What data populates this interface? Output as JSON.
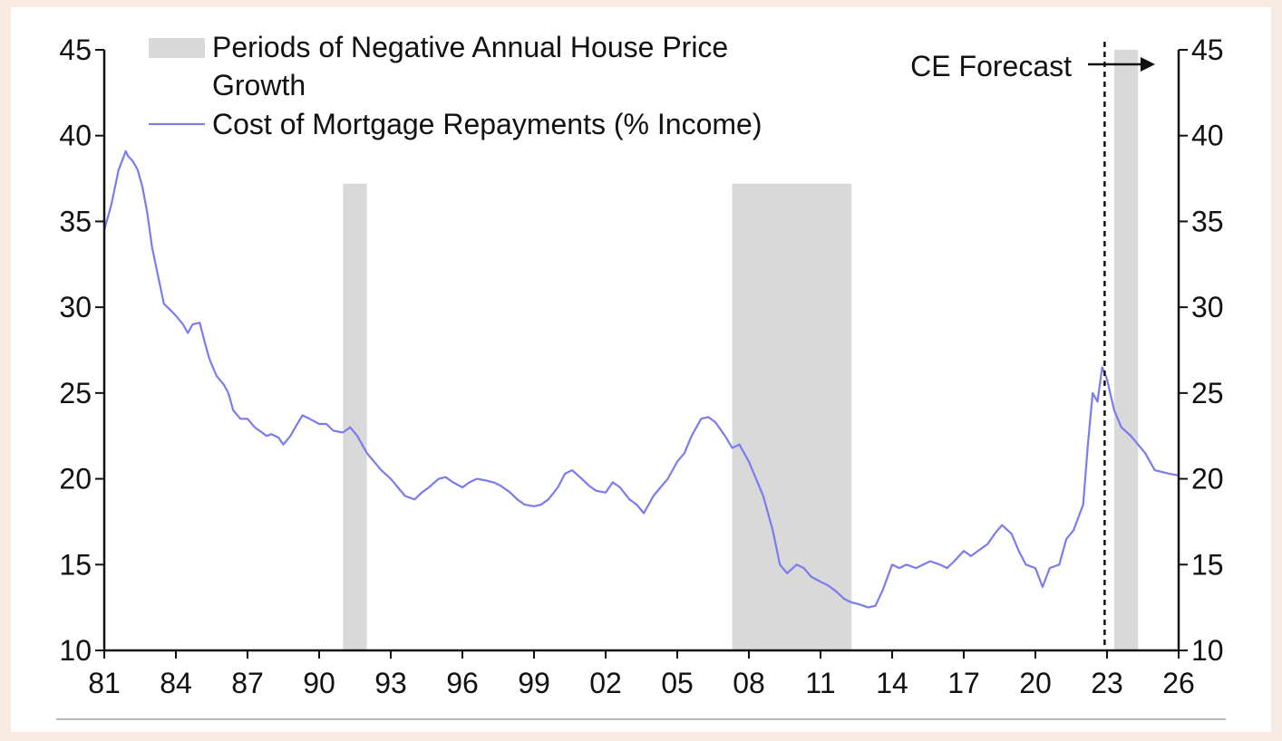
{
  "chart_data": {
    "type": "line",
    "x_unit": "year",
    "legend": {
      "placement": "top-left",
      "entries": [
        {
          "label_lines": [
            "Periods of Negative Annual House Price",
            "Growth"
          ],
          "marker": "shaded-band"
        },
        {
          "label_lines": [
            "Cost of Mortgage Repayments (% Income)"
          ],
          "marker": "line"
        }
      ]
    },
    "annotation": {
      "text": "CE Forecast",
      "x": 2022.9
    },
    "xlim": [
      1981,
      2026
    ],
    "ylim": [
      10,
      45
    ],
    "x_tick_values": [
      1981,
      1984,
      1987,
      1990,
      1993,
      1996,
      1999,
      2002,
      2005,
      2008,
      2011,
      2014,
      2017,
      2020,
      2023,
      2026
    ],
    "x_tick_labels": [
      "81",
      "84",
      "87",
      "90",
      "93",
      "96",
      "99",
      "02",
      "05",
      "08",
      "11",
      "14",
      "17",
      "20",
      "23",
      "26"
    ],
    "y_ticks": [
      "10",
      "15",
      "20",
      "25",
      "30",
      "35",
      "40",
      "45"
    ],
    "grid": false,
    "shaded_periods": [
      {
        "start": 1991.0,
        "end": 1992.0,
        "top": 37.2
      },
      {
        "start": 2007.3,
        "end": 2012.3,
        "top": 37.2
      },
      {
        "start": 2023.3,
        "end": 2024.3,
        "top": 45
      }
    ],
    "series": [
      {
        "name": "Cost of Mortgage Repayments (% Income)",
        "color": "#7b7bf0",
        "x": [
          1981.0,
          1981.3,
          1981.6,
          1981.9,
          1982.0,
          1982.2,
          1982.4,
          1982.6,
          1982.8,
          1983.0,
          1983.3,
          1983.5,
          1983.8,
          1984.0,
          1984.3,
          1984.5,
          1984.7,
          1985.0,
          1985.2,
          1985.4,
          1985.7,
          1986.0,
          1986.2,
          1986.4,
          1986.7,
          1987.0,
          1987.3,
          1987.5,
          1987.8,
          1988.0,
          1988.3,
          1988.5,
          1988.8,
          1989.0,
          1989.3,
          1989.6,
          1990.0,
          1990.3,
          1990.6,
          1991.0,
          1991.3,
          1991.6,
          1992.0,
          1992.3,
          1992.6,
          1993.0,
          1993.3,
          1993.6,
          1994.0,
          1994.3,
          1994.6,
          1995.0,
          1995.3,
          1995.6,
          1996.0,
          1996.3,
          1996.6,
          1997.0,
          1997.3,
          1997.6,
          1998.0,
          1998.3,
          1998.6,
          1999.0,
          1999.3,
          1999.6,
          2000.0,
          2000.3,
          2000.6,
          2001.0,
          2001.3,
          2001.6,
          2002.0,
          2002.3,
          2002.6,
          2003.0,
          2003.3,
          2003.6,
          2004.0,
          2004.3,
          2004.6,
          2005.0,
          2005.3,
          2005.6,
          2006.0,
          2006.3,
          2006.6,
          2007.0,
          2007.3,
          2007.6,
          2008.0,
          2008.3,
          2008.6,
          2009.0,
          2009.3,
          2009.6,
          2010.0,
          2010.3,
          2010.6,
          2011.0,
          2011.3,
          2011.6,
          2012.0,
          2012.3,
          2012.6,
          2013.0,
          2013.3,
          2013.6,
          2014.0,
          2014.3,
          2014.6,
          2015.0,
          2015.3,
          2015.6,
          2016.0,
          2016.3,
          2016.6,
          2017.0,
          2017.3,
          2017.6,
          2018.0,
          2018.3,
          2018.6,
          2019.0,
          2019.3,
          2019.6,
          2020.0,
          2020.3,
          2020.6,
          2021.0,
          2021.3,
          2021.6,
          2022.0,
          2022.2,
          2022.4,
          2022.6,
          2022.8,
          2023.0,
          2023.3,
          2023.6,
          2024.0,
          2024.3,
          2024.6,
          2025.0,
          2025.3,
          2025.6,
          2026.0
        ],
        "y": [
          34.5,
          36.0,
          38.0,
          39.1,
          38.8,
          38.5,
          38.0,
          37.0,
          35.5,
          33.5,
          31.5,
          30.2,
          29.8,
          29.5,
          29.0,
          28.5,
          29.0,
          29.1,
          28.0,
          27.0,
          26.0,
          25.5,
          25.0,
          24.0,
          23.5,
          23.5,
          23.0,
          22.8,
          22.5,
          22.6,
          22.4,
          22.0,
          22.5,
          23.0,
          23.7,
          23.5,
          23.2,
          23.2,
          22.8,
          22.7,
          23.0,
          22.5,
          21.5,
          21.0,
          20.5,
          20.0,
          19.5,
          19.0,
          18.8,
          19.2,
          19.5,
          20.0,
          20.1,
          19.8,
          19.5,
          19.8,
          20.0,
          19.9,
          19.8,
          19.6,
          19.2,
          18.8,
          18.5,
          18.4,
          18.5,
          18.8,
          19.5,
          20.3,
          20.5,
          20.0,
          19.6,
          19.3,
          19.2,
          19.8,
          19.5,
          18.8,
          18.5,
          18.0,
          19.0,
          19.5,
          20.0,
          21.0,
          21.5,
          22.5,
          23.5,
          23.6,
          23.3,
          22.5,
          21.8,
          22.0,
          21.0,
          20.0,
          19.0,
          17.0,
          15.0,
          14.5,
          15.0,
          14.8,
          14.3,
          14.0,
          13.8,
          13.5,
          13.0,
          12.8,
          12.7,
          12.5,
          12.6,
          13.5,
          15.0,
          14.8,
          15.0,
          14.8,
          15.0,
          15.2,
          15.0,
          14.8,
          15.2,
          15.8,
          15.5,
          15.8,
          16.2,
          16.8,
          17.3,
          16.8,
          15.8,
          15.0,
          14.8,
          13.7,
          14.8,
          15.0,
          16.5,
          17.0,
          18.5,
          22.0,
          25.0,
          24.5,
          26.5,
          25.8,
          24.0,
          23.0,
          22.5,
          22.0,
          21.5,
          20.5,
          20.4,
          20.3,
          20.2
        ]
      }
    ]
  }
}
